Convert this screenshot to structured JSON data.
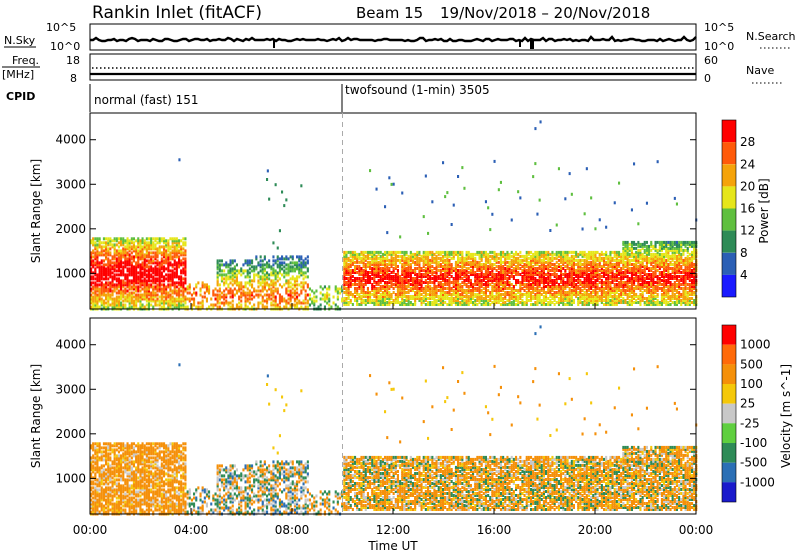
{
  "header": {
    "radar": "Rankin Inlet (fitACF)",
    "beam": "Beam 15",
    "dates": "19/Nov/2018 – 20/Nov/2018"
  },
  "summary": {
    "nsky_label": "N.Sky",
    "nsky_ticks": [
      "10^5",
      "10^0"
    ],
    "nsearch_label": "N.Search",
    "freq_label": "Freq.",
    "freq_unit": "[MHz]",
    "freq_ticks": [
      "18",
      "8"
    ],
    "nave_label": "Nave",
    "nave_ticks": [
      "60",
      "0"
    ],
    "cpid_label": "CPID",
    "cpid_segments": [
      {
        "label": "normal (fast) 151",
        "start_hour": 0,
        "end_hour": 10
      },
      {
        "label": "twofsound (1-min) 3505",
        "start_hour": 10,
        "end_hour": 24
      }
    ]
  },
  "chart_data": [
    {
      "type": "heatmap",
      "name": "power",
      "ylabel": "Slant Range [km]",
      "xlabel": "",
      "xlim": [
        0,
        24
      ],
      "ylim": [
        200,
        4600
      ],
      "yticks": [
        "1000",
        "2000",
        "3000",
        "4000"
      ],
      "colorbar": {
        "label": "Power [dB]",
        "ticks": [
          "4",
          "8",
          "12",
          "16",
          "20",
          "24",
          "28"
        ],
        "colors": [
          "#1a1aff",
          "#2b5fb5",
          "#2e8b57",
          "#5fbf3f",
          "#e6e61a",
          "#f5a30a",
          "#ff5a0a",
          "#ff0000"
        ]
      }
    },
    {
      "type": "heatmap",
      "name": "velocity",
      "ylabel": "Slant Range [km]",
      "xlabel": "Time UT",
      "xlim": [
        0,
        24
      ],
      "ylim": [
        200,
        4600
      ],
      "xticks": [
        "00:00",
        "04:00",
        "08:00",
        "12:00",
        "16:00",
        "20:00",
        "00:00"
      ],
      "yticks": [
        "1000",
        "2000",
        "3000",
        "4000"
      ],
      "colorbar": {
        "label": "Velocity [m s^-1]",
        "ticks": [
          "1000",
          "500",
          "100",
          "25",
          "-25",
          "-100",
          "-500",
          "-1000"
        ],
        "colors": [
          "#1a1acc",
          "#2b6fb5",
          "#2e8b57",
          "#5fcf3f",
          "#c8c8c8",
          "#f5c80a",
          "#f5900a",
          "#ff6a0a",
          "#ff0000"
        ]
      }
    }
  ]
}
